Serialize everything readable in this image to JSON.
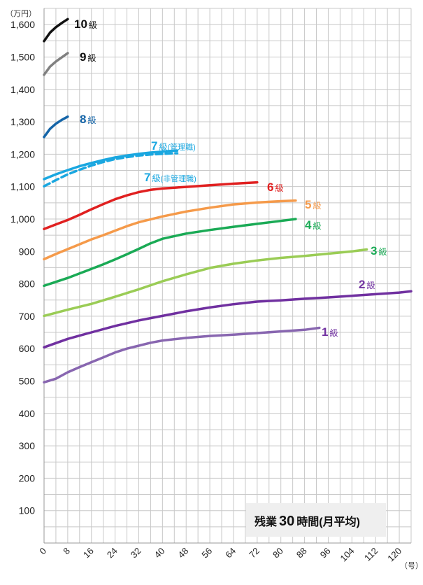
{
  "chart_data": {
    "type": "line",
    "y_unit_label": "（万円）",
    "x_unit_label": "（号）",
    "ylim": [
      0,
      1650
    ],
    "xlim": [
      0,
      124
    ],
    "y_ticks": [
      {
        "value": 100,
        "label": "100"
      },
      {
        "value": 200,
        "label": "200"
      },
      {
        "value": 300,
        "label": "300"
      },
      {
        "value": 400,
        "label": "400"
      },
      {
        "value": 500,
        "label": "500"
      },
      {
        "value": 600,
        "label": "600"
      },
      {
        "value": 700,
        "label": "700"
      },
      {
        "value": 800,
        "label": "800"
      },
      {
        "value": 900,
        "label": "900"
      },
      {
        "value": 1000,
        "label": "1,000"
      },
      {
        "value": 1100,
        "label": "1,100"
      },
      {
        "value": 1200,
        "label": "1,200"
      },
      {
        "value": 1300,
        "label": "1,300"
      },
      {
        "value": 1400,
        "label": "1,400"
      },
      {
        "value": 1500,
        "label": "1,500"
      },
      {
        "value": 1600,
        "label": "1,600"
      }
    ],
    "x_ticks": [
      0,
      8,
      16,
      24,
      32,
      40,
      48,
      56,
      64,
      72,
      80,
      88,
      96,
      104,
      112,
      120
    ],
    "grid": true,
    "annotation": {
      "prefix": "残業",
      "number": "30",
      "suffix": "時間(月平均)"
    },
    "series": [
      {
        "id": "s10",
        "name_num": "10",
        "name_kyu": "級",
        "name_sub": "",
        "color": "#111111",
        "dashed": false,
        "x": [
          0,
          2,
          4,
          6,
          8
        ],
        "values": [
          1549,
          1575,
          1592,
          1605,
          1617
        ]
      },
      {
        "id": "s9",
        "name_num": "9",
        "name_kyu": "級",
        "name_sub": "",
        "color": "#808080",
        "dashed": false,
        "x": [
          0,
          2,
          4,
          6,
          8
        ],
        "values": [
          1445,
          1470,
          1486,
          1499,
          1512
        ]
      },
      {
        "id": "s8",
        "name_num": "8",
        "name_kyu": "級",
        "name_sub": "",
        "color": "#1565a8",
        "dashed": false,
        "x": [
          0,
          2,
          4,
          6,
          8
        ],
        "values": [
          1253,
          1278,
          1294,
          1306,
          1316
        ]
      },
      {
        "id": "s7m",
        "name_num": "7",
        "name_kyu": "級",
        "name_sub": "(管理職)",
        "color": "#1aa7e0",
        "dashed": false,
        "x": [
          0,
          4,
          8,
          12,
          16,
          20,
          24,
          28,
          32,
          36,
          40,
          44,
          45
        ],
        "values": [
          1123,
          1138,
          1151,
          1163,
          1173,
          1182,
          1190,
          1196,
          1201,
          1205,
          1208,
          1211,
          1211
        ]
      },
      {
        "id": "s7n",
        "name_num": "7",
        "name_kyu": "級",
        "name_sub": "(非管理職)",
        "color": "#1aa7e0",
        "dashed": true,
        "x": [
          0,
          4,
          8,
          12,
          16,
          20,
          24,
          28,
          32,
          36,
          40,
          44,
          45
        ],
        "values": [
          1101,
          1120,
          1138,
          1152,
          1165,
          1176,
          1185,
          1191,
          1196,
          1199,
          1201,
          1203,
          1203
        ]
      },
      {
        "id": "s6",
        "name_num": "6",
        "name_kyu": "級",
        "name_sub": "",
        "color": "#e02020",
        "dashed": false,
        "x": [
          0,
          4,
          8,
          12,
          16,
          20,
          24,
          28,
          32,
          36,
          40,
          48,
          56,
          64,
          72
        ],
        "values": [
          969,
          983,
          997,
          1013,
          1030,
          1046,
          1061,
          1073,
          1083,
          1090,
          1094,
          1099,
          1104,
          1109,
          1113
        ]
      },
      {
        "id": "s5",
        "name_num": "5",
        "name_kyu": "級",
        "name_sub": "",
        "color": "#f59a4a",
        "dashed": false,
        "x": [
          0,
          4,
          8,
          12,
          16,
          20,
          24,
          28,
          32,
          40,
          48,
          56,
          64,
          72,
          80,
          85
        ],
        "values": [
          876,
          892,
          907,
          922,
          937,
          950,
          964,
          978,
          990,
          1008,
          1023,
          1035,
          1045,
          1051,
          1055,
          1057
        ]
      },
      {
        "id": "s4",
        "name_num": "4",
        "name_kyu": "級",
        "name_sub": "",
        "color": "#1aaa55",
        "dashed": false,
        "x": [
          0,
          4,
          8,
          12,
          16,
          20,
          24,
          28,
          32,
          36,
          40,
          48,
          56,
          64,
          72,
          80,
          85
        ],
        "values": [
          794,
          806,
          818,
          832,
          846,
          860,
          875,
          891,
          908,
          925,
          939,
          955,
          966,
          976,
          985,
          994,
          1000
        ]
      },
      {
        "id": "s3",
        "name_num": "3",
        "name_kyu": "級",
        "name_sub": "",
        "color": "#9acc55",
        "dashed": false,
        "x": [
          0,
          8,
          16,
          24,
          32,
          40,
          48,
          56,
          64,
          72,
          80,
          88,
          96,
          104,
          109
        ],
        "values": [
          701,
          720,
          738,
          760,
          783,
          808,
          829,
          849,
          862,
          872,
          880,
          886,
          893,
          900,
          906
        ]
      },
      {
        "id": "s2",
        "name_num": "2",
        "name_kyu": "級",
        "name_sub": "",
        "color": "#7030a0",
        "dashed": false,
        "x": [
          0,
          8,
          16,
          24,
          32,
          40,
          48,
          56,
          64,
          72,
          80,
          88,
          96,
          104,
          112,
          120,
          124
        ],
        "values": [
          604,
          630,
          650,
          670,
          687,
          701,
          715,
          727,
          737,
          745,
          749,
          754,
          758,
          763,
          768,
          773,
          777
        ]
      },
      {
        "id": "s1",
        "name_num": "1",
        "name_kyu": "級",
        "name_sub": "",
        "color": "#8866b0",
        "dashed": false,
        "x": [
          0,
          4,
          8,
          12,
          16,
          20,
          24,
          28,
          32,
          36,
          40,
          48,
          56,
          64,
          72,
          80,
          88,
          93
        ],
        "values": [
          496,
          507,
          527,
          543,
          558,
          573,
          588,
          600,
          609,
          618,
          625,
          633,
          639,
          643,
          648,
          653,
          658,
          664
        ]
      }
    ]
  }
}
